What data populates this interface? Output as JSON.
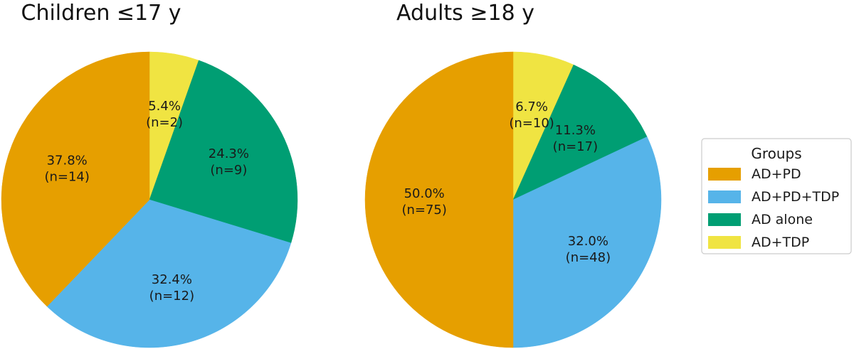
{
  "chart_data": [
    {
      "type": "pie",
      "title": "Children ≤17 y",
      "start_angle_deg": 90,
      "direction": "clockwise",
      "slices": [
        {
          "name": "AD+TDP",
          "percent": 5.4,
          "count": 2,
          "label_pct": "5.4%",
          "label_n": "(n=2)",
          "color": "#f0e442"
        },
        {
          "name": "AD alone",
          "percent": 24.3,
          "count": 9,
          "label_pct": "24.3%",
          "label_n": "(n=9)",
          "color": "#009e73"
        },
        {
          "name": "AD+PD+TDP",
          "percent": 32.4,
          "count": 12,
          "label_pct": "32.4%",
          "label_n": "(n=12)",
          "color": "#56b4e9"
        },
        {
          "name": "AD+PD",
          "percent": 37.8,
          "count": 14,
          "label_pct": "37.8%",
          "label_n": "(n=14)",
          "color": "#e69f00"
        }
      ]
    },
    {
      "type": "pie",
      "title": "Adults ≥18 y",
      "start_angle_deg": 90,
      "direction": "clockwise",
      "slices": [
        {
          "name": "AD+TDP",
          "percent": 6.7,
          "count": 10,
          "label_pct": "6.7%",
          "label_n": "(n=10)",
          "color": "#f0e442"
        },
        {
          "name": "AD alone",
          "percent": 11.3,
          "count": 17,
          "label_pct": "11.3%",
          "label_n": "(n=17)",
          "color": "#009e73"
        },
        {
          "name": "AD+PD+TDP",
          "percent": 32.0,
          "count": 48,
          "label_pct": "32.0%",
          "label_n": "(n=48)",
          "color": "#56b4e9"
        },
        {
          "name": "AD+PD",
          "percent": 50.0,
          "count": 75,
          "label_pct": "50.0%",
          "label_n": "(n=75)",
          "color": "#e69f00"
        }
      ]
    }
  ],
  "legend": {
    "title": "Groups",
    "placement": "right",
    "items": [
      {
        "label": "AD+PD",
        "color": "#e69f00"
      },
      {
        "label": "AD+PD+TDP",
        "color": "#56b4e9"
      },
      {
        "label": "AD alone",
        "color": "#009e73"
      },
      {
        "label": "AD+TDP",
        "color": "#f0e442"
      }
    ]
  }
}
